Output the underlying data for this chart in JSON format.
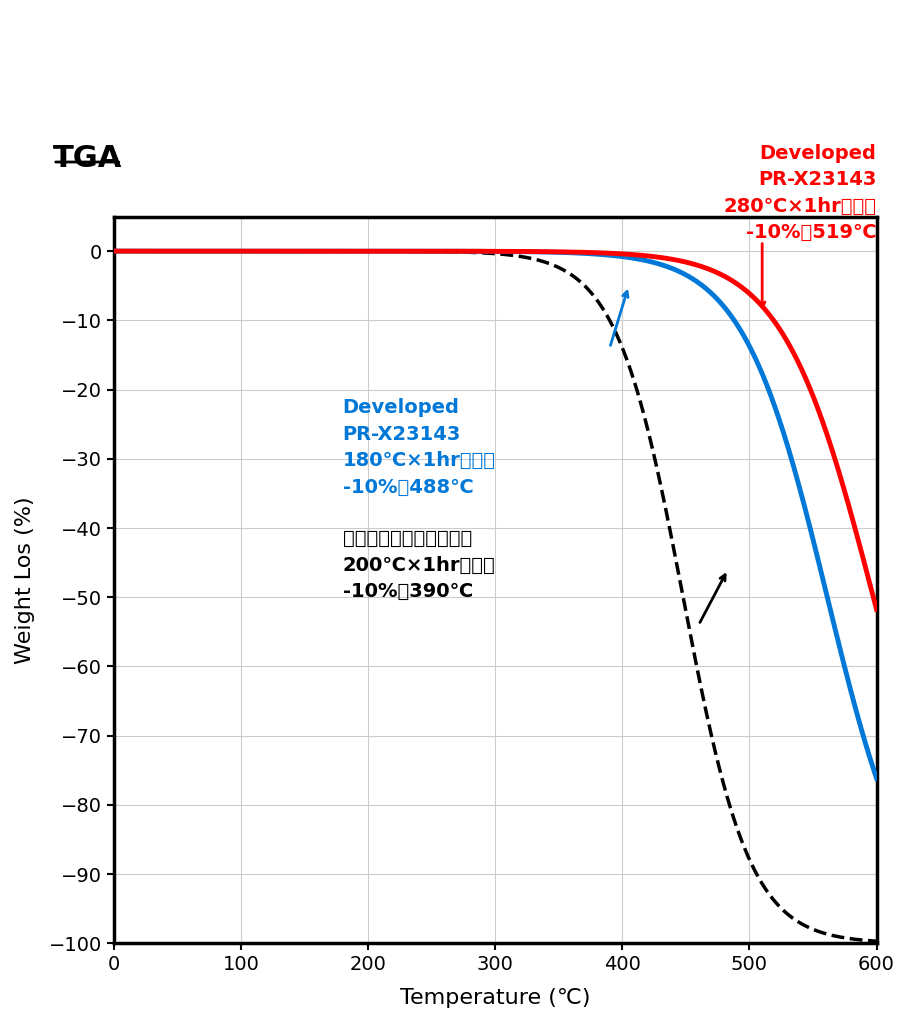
{
  "title": "TGA",
  "xlabel": "Temperature (℃)",
  "ylabel": "Weight Los (%)",
  "xlim": [
    0,
    600
  ],
  "ylim": [
    -100,
    5
  ],
  "yticks": [
    0,
    -10,
    -20,
    -30,
    -40,
    -50,
    -60,
    -70,
    -80,
    -90,
    -100
  ],
  "xticks": [
    0,
    100,
    200,
    300,
    400,
    500,
    600
  ],
  "line_red_label": "Developed\nPR-X23143\n280℃×1hr确化物\n-10%：519℃",
  "line_blue_label": "Developed\nPR-X23143\n180℃×1hr确化物\n-10%：488℃",
  "line_black_label": "汎用フェノール樹脳粉末\n200℃×1hr确化物\n-10%：390℃",
  "red_color": "#ff0000",
  "blue_color": "#0078d7",
  "black_color": "#000000",
  "background_color": "#ffffff",
  "grid_color": "#cccccc",
  "k_red": 0.028,
  "k_blue": 0.03,
  "k_black": 0.038,
  "T10_red": 519,
  "T10_blue": 488,
  "T10_black": 390
}
